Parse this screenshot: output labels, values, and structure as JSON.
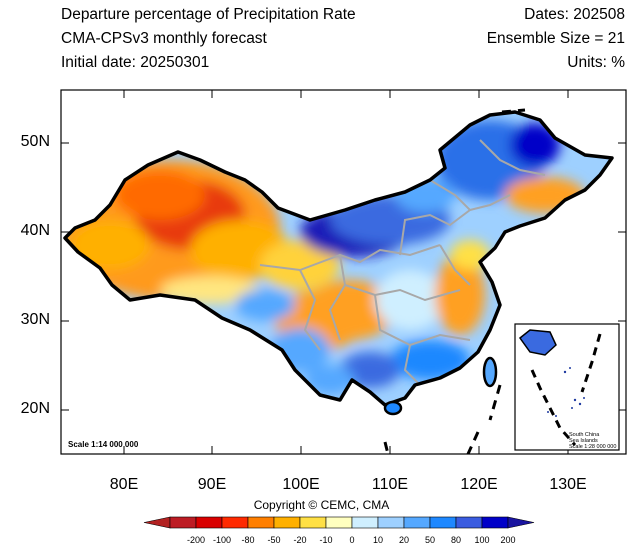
{
  "header": {
    "title_line1": "Departure percentage of Precipitation Rate",
    "title_line2": "CMA-CPSv3 monthly forecast",
    "title_line3": "Initial date: 20250301",
    "dates": "Dates: 202508",
    "ensemble": "Ensemble Size = 21",
    "units": "Units: %"
  },
  "map": {
    "lon_ticks": [
      "80E",
      "90E",
      "100E",
      "110E",
      "120E",
      "130E"
    ],
    "lat_ticks": [
      "50N",
      "40N",
      "30N",
      "20N"
    ],
    "lon_range": [
      73,
      136
    ],
    "lat_range": [
      15,
      56
    ],
    "scale_text": "Scale 1:14 000 000",
    "inset": {
      "line1": "South China",
      "line2": "Sea Islands",
      "line3": "Scale 1:28 000 000"
    }
  },
  "colorbar": {
    "levels": [
      "-200",
      "-100",
      "-80",
      "-50",
      "-20",
      "-10",
      "0",
      "10",
      "20",
      "50",
      "80",
      "100",
      "200"
    ],
    "colors": [
      "#bd1c24",
      "#d90000",
      "#ff2a00",
      "#ff7f00",
      "#ffb000",
      "#ffe044",
      "#ffffbf",
      "#cfefff",
      "#9ed0ff",
      "#55a8ff",
      "#1e88ff",
      "#3a5ce0",
      "#0000c8",
      "#1a14a0"
    ],
    "under_color": "#b22222",
    "over_color": "#1a14a0"
  },
  "copyright": "Copyright © CEMC, CMA"
}
